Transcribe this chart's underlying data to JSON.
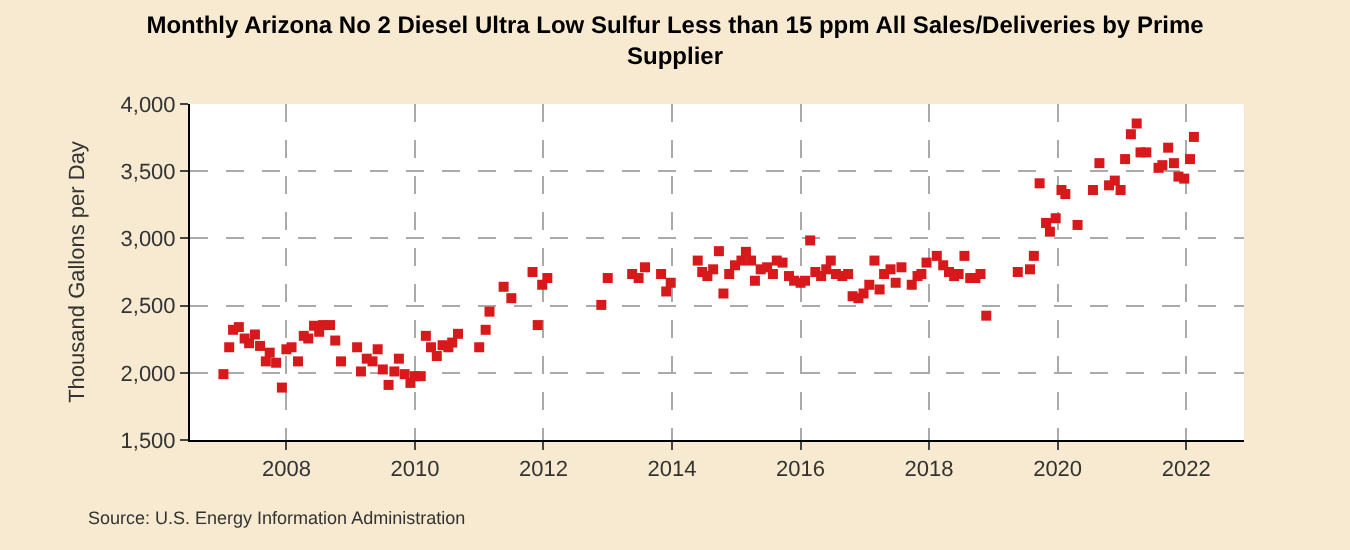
{
  "chart_data": {
    "type": "scatter",
    "title": "Monthly Arizona No 2 Diesel Ultra Low Sulfur Less than 15 ppm All Sales/Deliveries by Prime Supplier",
    "ylabel": "Thousand Gallons per Day",
    "annotations": [
      "Source: U.S. Energy Information Administration"
    ],
    "x": [
      2007.02,
      2007.11,
      2007.17,
      2007.26,
      2007.35,
      2007.42,
      2007.51,
      2007.59,
      2007.68,
      2007.74,
      2007.84,
      2007.93,
      2008.0,
      2008.08,
      2008.18,
      2008.27,
      2008.34,
      2008.43,
      2008.51,
      2008.57,
      2008.68,
      2008.76,
      2008.85,
      2009.1,
      2009.16,
      2009.25,
      2009.34,
      2009.42,
      2009.5,
      2009.59,
      2009.68,
      2009.75,
      2009.84,
      2009.93,
      2010.0,
      2010.09,
      2010.17,
      2010.25,
      2010.34,
      2010.43,
      2010.52,
      2010.58,
      2010.67,
      2011.0,
      2011.1,
      2011.16,
      2011.38,
      2011.5,
      2011.83,
      2011.91,
      2011.98,
      2012.06,
      2012.9,
      2013.0,
      2013.38,
      2013.48,
      2013.58,
      2013.83,
      2013.91,
      2013.98,
      2014.4,
      2014.47,
      2014.55,
      2014.64,
      2014.73,
      2014.8,
      2014.89,
      2014.98,
      2015.08,
      2015.15,
      2015.23,
      2015.29,
      2015.38,
      2015.48,
      2015.57,
      2015.63,
      2015.72,
      2015.82,
      2015.9,
      2016.0,
      2016.07,
      2016.15,
      2016.23,
      2016.32,
      2016.4,
      2016.47,
      2016.55,
      2016.65,
      2016.74,
      2016.81,
      2016.9,
      2016.98,
      2017.07,
      2017.15,
      2017.23,
      2017.3,
      2017.4,
      2017.48,
      2017.57,
      2017.73,
      2017.82,
      2017.88,
      2017.96,
      2018.12,
      2018.22,
      2018.31,
      2018.39,
      2018.46,
      2018.55,
      2018.64,
      2018.72,
      2018.8,
      2018.89,
      2019.38,
      2019.57,
      2019.63,
      2019.72,
      2019.82,
      2019.88,
      2019.97,
      2020.06,
      2020.12,
      2020.31,
      2020.55,
      2020.65,
      2020.8,
      2020.89,
      2020.98,
      2021.05,
      2021.14,
      2021.23,
      2021.29,
      2021.38,
      2021.57,
      2021.63,
      2021.72,
      2021.81,
      2021.88,
      2021.97,
      2022.06,
      2022.12
    ],
    "series": [
      {
        "color": "#d7191c",
        "values": [
          1990,
          2190,
          2320,
          2340,
          2255,
          2220,
          2285,
          2200,
          2085,
          2150,
          2075,
          1890,
          2175,
          2190,
          2085,
          2275,
          2255,
          2350,
          2305,
          2355,
          2355,
          2240,
          2085,
          2190,
          2010,
          2105,
          2085,
          2175,
          2025,
          1910,
          2010,
          2105,
          1990,
          1925,
          1975,
          1975,
          2275,
          2190,
          2125,
          2205,
          2190,
          2225,
          2290,
          2190,
          2320,
          2455,
          2640,
          2555,
          2750,
          2355,
          2655,
          2705,
          2505,
          2705,
          2735,
          2705,
          2785,
          2735,
          2605,
          2670,
          2835,
          2750,
          2720,
          2770,
          2905,
          2590,
          2735,
          2800,
          2835,
          2900,
          2835,
          2685,
          2770,
          2785,
          2735,
          2835,
          2820,
          2720,
          2685,
          2670,
          2685,
          2985,
          2750,
          2720,
          2770,
          2835,
          2735,
          2720,
          2735,
          2570,
          2555,
          2590,
          2655,
          2835,
          2620,
          2735,
          2770,
          2670,
          2785,
          2655,
          2720,
          2735,
          2820,
          2870,
          2800,
          2750,
          2720,
          2735,
          2870,
          2705,
          2705,
          2735,
          2425,
          2750,
          2770,
          2870,
          3410,
          3115,
          3050,
          3150,
          3360,
          3330,
          3100,
          3360,
          3560,
          3395,
          3430,
          3360,
          3590,
          3775,
          3855,
          3640,
          3640,
          3525,
          3545,
          3675,
          3560,
          3460,
          3445,
          3590,
          3755
        ]
      }
    ],
    "xlim": [
      2006.5,
      2022.9
    ],
    "xticks": [
      2008,
      2010,
      2012,
      2014,
      2016,
      2018,
      2020,
      2022
    ],
    "ylim": [
      1500,
      4000
    ],
    "yticks": [
      {
        "value": 1500,
        "label": "1,500"
      },
      {
        "value": 2000,
        "label": "2,000"
      },
      {
        "value": 2500,
        "label": "2,500"
      },
      {
        "value": 3000,
        "label": "3,000"
      },
      {
        "value": 3500,
        "label": "3,500"
      },
      {
        "value": 4000,
        "label": "4,000"
      }
    ],
    "grid": true,
    "marker": "square"
  }
}
